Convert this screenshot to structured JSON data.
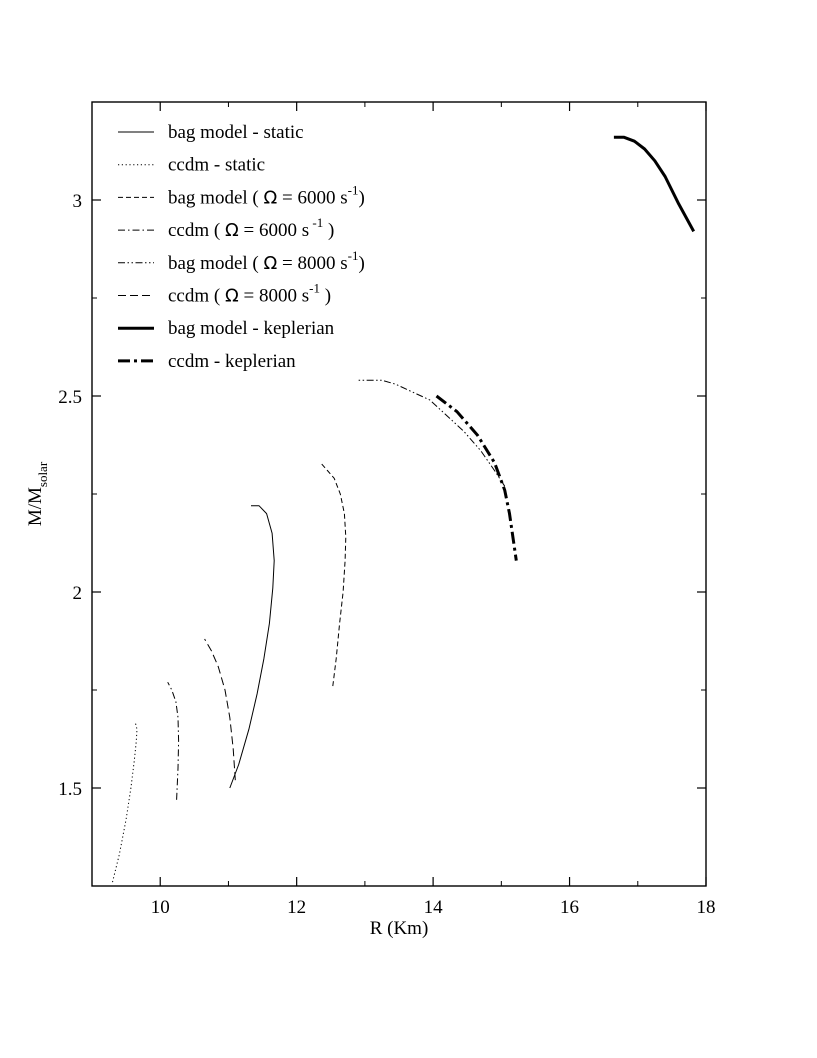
{
  "chart_data": {
    "type": "line",
    "title": "",
    "xlabel": "R (Km)",
    "ylabel": {
      "main": "M/M",
      "sub": "solar"
    },
    "xlim": [
      9,
      18
    ],
    "ylim": [
      1.25,
      3.25
    ],
    "xticks": [
      10,
      12,
      14,
      16,
      18
    ],
    "yticks": [
      1.5,
      2,
      2.5,
      3
    ],
    "xtick_labels": [
      "10",
      "12",
      "14",
      "16",
      "18"
    ],
    "ytick_labels": [
      "1.5",
      "2",
      "2.5",
      "3"
    ],
    "grid": false,
    "legend_position": "top-left",
    "series": [
      {
        "name": "bag model - static",
        "legend": {
          "pre": "bag model - static"
        },
        "style": "solid",
        "width": 1,
        "x": [
          11.02,
          11.15,
          11.3,
          11.42,
          11.52,
          11.6,
          11.65,
          11.67,
          11.64,
          11.56,
          11.45,
          11.33
        ],
        "y": [
          1.5,
          1.56,
          1.65,
          1.74,
          1.83,
          1.92,
          2.01,
          2.08,
          2.15,
          2.2,
          2.22,
          2.22
        ]
      },
      {
        "name": "ccdm - static",
        "legend": {
          "pre": "ccdm - static"
        },
        "style": "dotted",
        "width": 1,
        "x": [
          9.3,
          9.4,
          9.5,
          9.57,
          9.62,
          9.65,
          9.66,
          9.63
        ],
        "y": [
          1.26,
          1.33,
          1.42,
          1.5,
          1.57,
          1.62,
          1.65,
          1.67
        ]
      },
      {
        "name": "bag model ( Ω = 6000 s-1)",
        "legend": {
          "pre": "bag model ( ",
          "omega": "Ω",
          "post": " = 6000 s",
          "sup": "-1",
          "tail": ")"
        },
        "style": "dashed",
        "width": 1,
        "x": [
          12.53,
          12.58,
          12.63,
          12.68,
          12.71,
          12.72,
          12.7,
          12.64,
          12.55,
          12.45,
          12.35
        ],
        "y": [
          1.76,
          1.83,
          1.92,
          2.0,
          2.08,
          2.14,
          2.2,
          2.25,
          2.29,
          2.31,
          2.33
        ]
      },
      {
        "name": "ccdm ( Ω = 6000 s -1 )",
        "legend": {
          "pre": "ccdm ( ",
          "omega": "Ω",
          "post": " = 6000 s",
          "sup": " -1",
          "tail": " )"
        },
        "style": "dashdot",
        "width": 1,
        "x": [
          10.24,
          10.26,
          10.27,
          10.26,
          10.23,
          10.17,
          10.11
        ],
        "y": [
          1.47,
          1.55,
          1.62,
          1.68,
          1.72,
          1.75,
          1.77
        ]
      },
      {
        "name": "bag model ( Ω = 8000 s-1)",
        "legend": {
          "pre": "bag model ( ",
          "omega": "Ω",
          "post": " = 8000 s",
          "sup": "-1",
          "tail": ")"
        },
        "style": "dashdotdot",
        "width": 1,
        "x": [
          15.05,
          14.9,
          14.7,
          14.45,
          14.2,
          13.95,
          13.7,
          13.45,
          13.25,
          13.05,
          12.9
        ],
        "y": [
          2.27,
          2.31,
          2.36,
          2.41,
          2.45,
          2.49,
          2.51,
          2.53,
          2.54,
          2.54,
          2.54
        ]
      },
      {
        "name": "ccdm ( Ω = 8000 s-1 )",
        "legend": {
          "pre": "ccdm ( ",
          "omega": "Ω",
          "post": " = 8000 s",
          "sup": "-1",
          "tail": " )"
        },
        "style": "dashed-long",
        "width": 1,
        "x": [
          11.1,
          11.07,
          11.02,
          10.95,
          10.85,
          10.75,
          10.65
        ],
        "y": [
          1.52,
          1.6,
          1.68,
          1.75,
          1.81,
          1.85,
          1.88
        ]
      },
      {
        "name": "bag model - keplerian",
        "legend": {
          "pre": "bag model - keplerian"
        },
        "style": "solid",
        "width": 3,
        "x": [
          16.65,
          16.8,
          16.95,
          17.1,
          17.25,
          17.4,
          17.6,
          17.82
        ],
        "y": [
          3.16,
          3.16,
          3.15,
          3.13,
          3.1,
          3.06,
          2.99,
          2.92
        ]
      },
      {
        "name": "ccdm - keplerian",
        "legend": {
          "pre": "ccdm - keplerian"
        },
        "style": "dashdot-bold",
        "width": 3,
        "x": [
          14.05,
          14.35,
          14.65,
          14.9,
          15.05,
          15.12,
          15.17,
          15.22
        ],
        "y": [
          2.5,
          2.46,
          2.4,
          2.33,
          2.26,
          2.2,
          2.14,
          2.08
        ]
      }
    ]
  }
}
